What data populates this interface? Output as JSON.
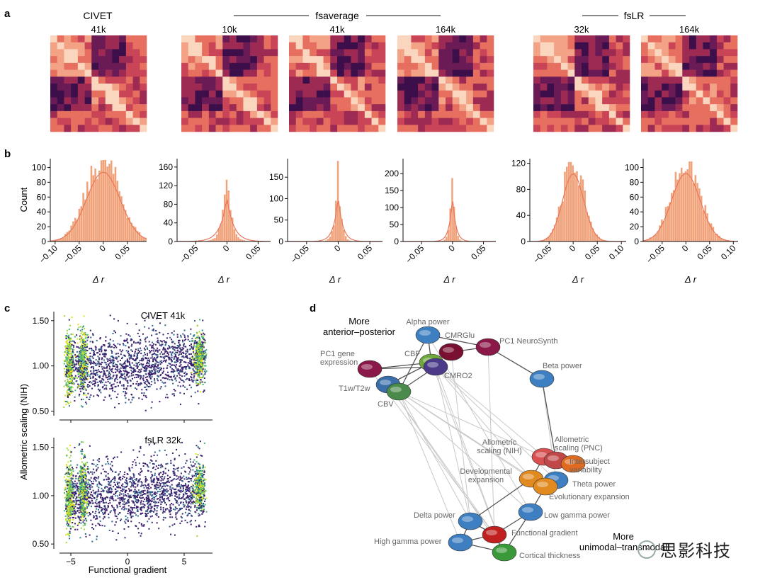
{
  "panel_a": {
    "label": "a",
    "group_fsaverage": "fsaverage",
    "group_fslr": "fsLR",
    "matrices": [
      {
        "title": "CIVET",
        "res": "41k"
      },
      {
        "title": "",
        "res": "10k"
      },
      {
        "title": "",
        "res": "41k"
      },
      {
        "title": "",
        "res": "164k"
      },
      {
        "title": "",
        "res": "32k"
      },
      {
        "title": "",
        "res": "164k"
      }
    ]
  },
  "panel_b": {
    "label": "b",
    "ylabel": "Count",
    "xlabel": "Δ r",
    "colors": {
      "bar": "#f0a27a",
      "line": "#e8765a"
    },
    "histograms": [
      {
        "yticks": [
          0,
          20,
          40,
          60,
          80,
          100
        ],
        "ymax": 110,
        "xlim": [
          -0.11,
          0.09
        ],
        "xticks": [
          -0.1,
          -0.05,
          0,
          0.05
        ],
        "xticklabels": [
          "−0.10",
          "−0.05",
          "0",
          "0.05"
        ],
        "sd": 0.035,
        "peak": 110
      },
      {
        "yticks": [
          0,
          40,
          80,
          120,
          160
        ],
        "ymax": 175,
        "xlim": [
          -0.08,
          0.07
        ],
        "xticks": [
          -0.05,
          0,
          0.05
        ],
        "xticklabels": [
          "−0.05",
          "0",
          "0.05"
        ],
        "sd": 0.006,
        "peak": 170
      },
      {
        "yticks": [
          0,
          50,
          100,
          150
        ],
        "ymax": 190,
        "xlim": [
          -0.08,
          0.07
        ],
        "xticks": [
          -0.05,
          0,
          0.05
        ],
        "xticklabels": [
          "−0.05",
          "0",
          "0.05"
        ],
        "sd": 0.004,
        "peak": 188
      },
      {
        "yticks": [
          0,
          50,
          100,
          150,
          200
        ],
        "ymax": 240,
        "xlim": [
          -0.08,
          0.07
        ],
        "xticks": [
          -0.05,
          0,
          0.05
        ],
        "xticklabels": [
          "−0.05",
          "0",
          "0.05"
        ],
        "sd": 0.003,
        "peak": 240
      },
      {
        "yticks": [
          0,
          40,
          80,
          120
        ],
        "ymax": 125,
        "xlim": [
          -0.09,
          0.11
        ],
        "xticks": [
          -0.05,
          0,
          0.05,
          0.1
        ],
        "xticklabels": [
          "−0.05",
          "0",
          "0.05",
          "0.10"
        ],
        "sd": 0.022,
        "peak": 122
      },
      {
        "yticks": [
          0,
          20,
          40,
          60,
          80,
          100
        ],
        "ymax": 110,
        "xlim": [
          -0.09,
          0.11
        ],
        "xticks": [
          -0.05,
          0,
          0.05,
          0.1
        ],
        "xticklabels": [
          "−0.05",
          "0",
          "0.05",
          "0.10"
        ],
        "sd": 0.03,
        "peak": 108
      }
    ]
  },
  "panel_c": {
    "label": "c",
    "ylabel": "Allometric scaling (NIH)",
    "xlabel": "Functional gradient",
    "xticks": [
      -5,
      0,
      5
    ],
    "xticklabels": [
      "−5",
      "0",
      "5"
    ],
    "yticks": [
      0.5,
      1.0,
      1.5
    ],
    "yticklabels": [
      "0.50",
      "1.00",
      "1.50"
    ],
    "plots": [
      {
        "title": "CIVET 41k"
      },
      {
        "title": "fsLR 32k"
      }
    ]
  },
  "panel_d": {
    "label": "d",
    "corner_top": [
      "More",
      "anterior–posterior"
    ],
    "corner_bottom": [
      "More",
      "unimodal–transmodal"
    ],
    "nodes": [
      {
        "id": "alpha",
        "label": "Alpha power",
        "color": "#3d7fc1"
      },
      {
        "id": "cmrglu",
        "label": "CMRGlu",
        "color": "#7a1030"
      },
      {
        "id": "pc1ns",
        "label": "PC1 NeuroSynth",
        "color": "#8a1848"
      },
      {
        "id": "cbf",
        "label": "CBF",
        "color": "#6ea83a"
      },
      {
        "id": "pc1gene",
        "label": "PC1 gene expression",
        "color": "#8a1848"
      },
      {
        "id": "cmro2",
        "label": "CMRO2",
        "color": "#4a3a88"
      },
      {
        "id": "beta",
        "label": "Beta power",
        "color": "#3d7fc1"
      },
      {
        "id": "t1t2",
        "label": "T1w/T2w",
        "color": "#3a6ea8"
      },
      {
        "id": "cbv",
        "label": "CBV",
        "color": "#4a8a4a"
      },
      {
        "id": "allo_nih",
        "label": "Allometric scaling (NIH)",
        "color": "#d85050"
      },
      {
        "id": "allo_pnc",
        "label": "Allometric scaling (PNC)",
        "color": "#c04848"
      },
      {
        "id": "intersub",
        "label": "Intersubject variability",
        "color": "#e06a20"
      },
      {
        "id": "dev",
        "label": "Developmental expansion",
        "color": "#e08a20"
      },
      {
        "id": "theta",
        "label": "Theta power",
        "color": "#3d7fc1"
      },
      {
        "id": "evo",
        "label": "Evolutionary expansion",
        "color": "#e08a20"
      },
      {
        "id": "delta",
        "label": "Delta power",
        "color": "#3d7fc1"
      },
      {
        "id": "lowgamma",
        "label": "Low gamma power",
        "color": "#3d7fc1"
      },
      {
        "id": "funcgrad",
        "label": "Functional gradient",
        "color": "#c02020"
      },
      {
        "id": "highgamma",
        "label": "High gamma power",
        "color": "#3d7fc1"
      },
      {
        "id": "thick",
        "label": "Cortical thickness",
        "color": "#3a9a3a"
      }
    ]
  },
  "watermark": {
    "text": "思影科技"
  },
  "chart_data": [
    {
      "type": "histogram",
      "title": "Δr distributions (CIVET 41k, fsaverage 10k/41k/164k, fsLR 32k/164k)",
      "xlabel": "Δ r",
      "ylabel": "Count",
      "series": [
        {
          "name": "CIVET 41k",
          "center": 0.0,
          "peak_count": 110
        },
        {
          "name": "fsaverage 10k",
          "center": 0.0,
          "peak_count": 170
        },
        {
          "name": "fsaverage 41k",
          "center": 0.0,
          "peak_count": 188
        },
        {
          "name": "fsaverage 164k",
          "center": 0.0,
          "peak_count": 240
        },
        {
          "name": "fsLR 32k",
          "center": 0.0,
          "peak_count": 122
        },
        {
          "name": "fsLR 164k",
          "center": 0.0,
          "peak_count": 108
        }
      ]
    },
    {
      "type": "scatter",
      "title": "CIVET 41k / fsLR 32k",
      "xlabel": "Functional gradient",
      "ylabel": "Allometric scaling (NIH)",
      "xlim": [
        -6,
        7.5
      ],
      "ylim": [
        0.45,
        1.6
      ]
    }
  ]
}
